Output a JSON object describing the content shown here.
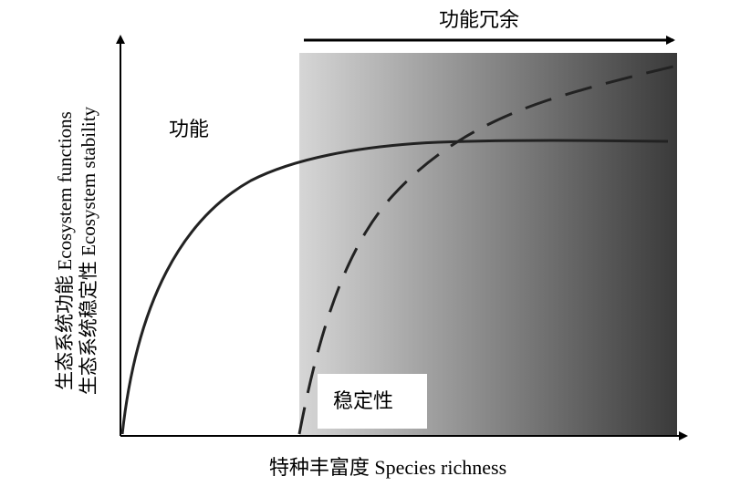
{
  "diagram": {
    "x_axis_label": "特种丰富度 Species richness",
    "y_axis_label_line1": "生态系统功能 Ecosystem functions",
    "y_axis_label_line2": "生态系统稳定性 Ecosystem stability",
    "function_curve_label": "功能",
    "stability_curve_label": "稳定性",
    "redundancy_label": "功能冗余",
    "colors": {
      "axis": "#000000",
      "curve": "#222222",
      "gradient_start": "#d6d6d6",
      "gradient_end": "#3a3a3a",
      "label_box": "#ffffff"
    }
  }
}
